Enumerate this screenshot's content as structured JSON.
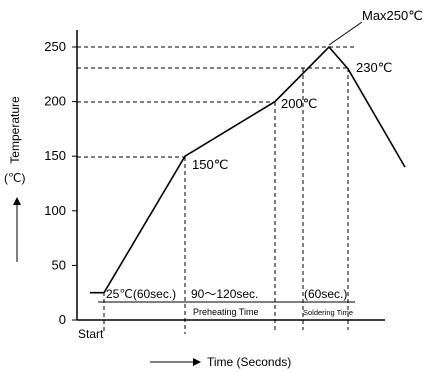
{
  "chart_data": {
    "type": "line",
    "title": "",
    "ylabel": "Temperature",
    "ylabel_unit": "(℃)",
    "xlabel": "Time (Seconds)",
    "yticks": [
      0,
      50,
      100,
      150,
      200,
      250
    ],
    "ylim": [
      0,
      260
    ],
    "x_start_label": "Start",
    "series": [
      {
        "x": [
          0,
          10,
          90,
          180,
          215,
          225,
          260
        ],
        "y": [
          25,
          25,
          150,
          200,
          250,
          230,
          140
        ]
      }
    ],
    "annotations": {
      "max": "Max250℃",
      "p230": "230℃",
      "p200": "200℃",
      "p150": "150℃",
      "phase1": "25℃(60sec.)",
      "phase2": "90〜120sec.",
      "phase3": "(60sec.)",
      "preheat": "Preheating Time",
      "solder": "Soldering Time"
    },
    "grid": false
  }
}
